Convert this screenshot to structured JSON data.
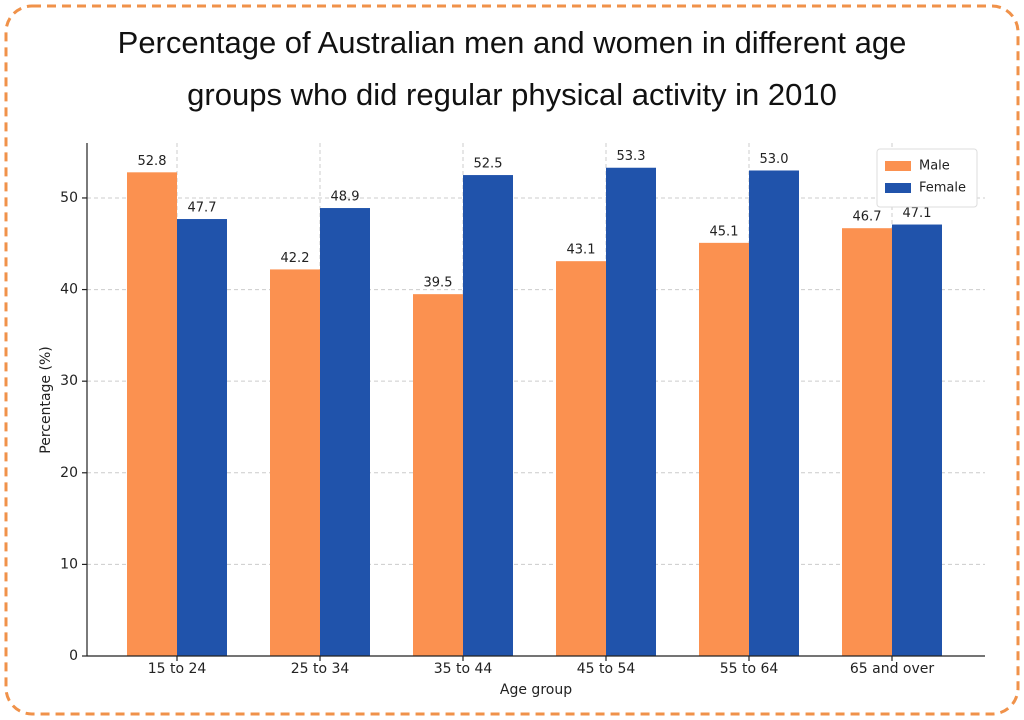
{
  "chart_data": {
    "type": "bar",
    "title": [
      "Percentage of Australian men and women in different age",
      "groups who did regular physical activity in 2010"
    ],
    "x_label": "Age group",
    "y_label": "Percentage (%)",
    "categories": [
      "15 to 24",
      "25 to 34",
      "35 to 44",
      "45 to 54",
      "55 to 64",
      "65 and over"
    ],
    "series": [
      {
        "name": "Male",
        "color": "#fb9150",
        "values": [
          52.8,
          42.2,
          39.5,
          43.1,
          45.1,
          46.7
        ],
        "value_labels": [
          "52.8",
          "42.2",
          "39.5",
          "43.1",
          "45.1",
          "46.7"
        ]
      },
      {
        "name": "Female",
        "color": "#2053ab",
        "values": [
          47.7,
          48.9,
          52.5,
          53.3,
          53.0,
          47.1
        ],
        "value_labels": [
          "47.7",
          "48.9",
          "52.5",
          "53.3",
          "53.0",
          "47.1"
        ]
      }
    ],
    "ylim": [
      0,
      56
    ],
    "yticks": [
      0,
      10,
      20,
      30,
      40,
      50
    ],
    "grid": true,
    "legend": "upper right"
  }
}
